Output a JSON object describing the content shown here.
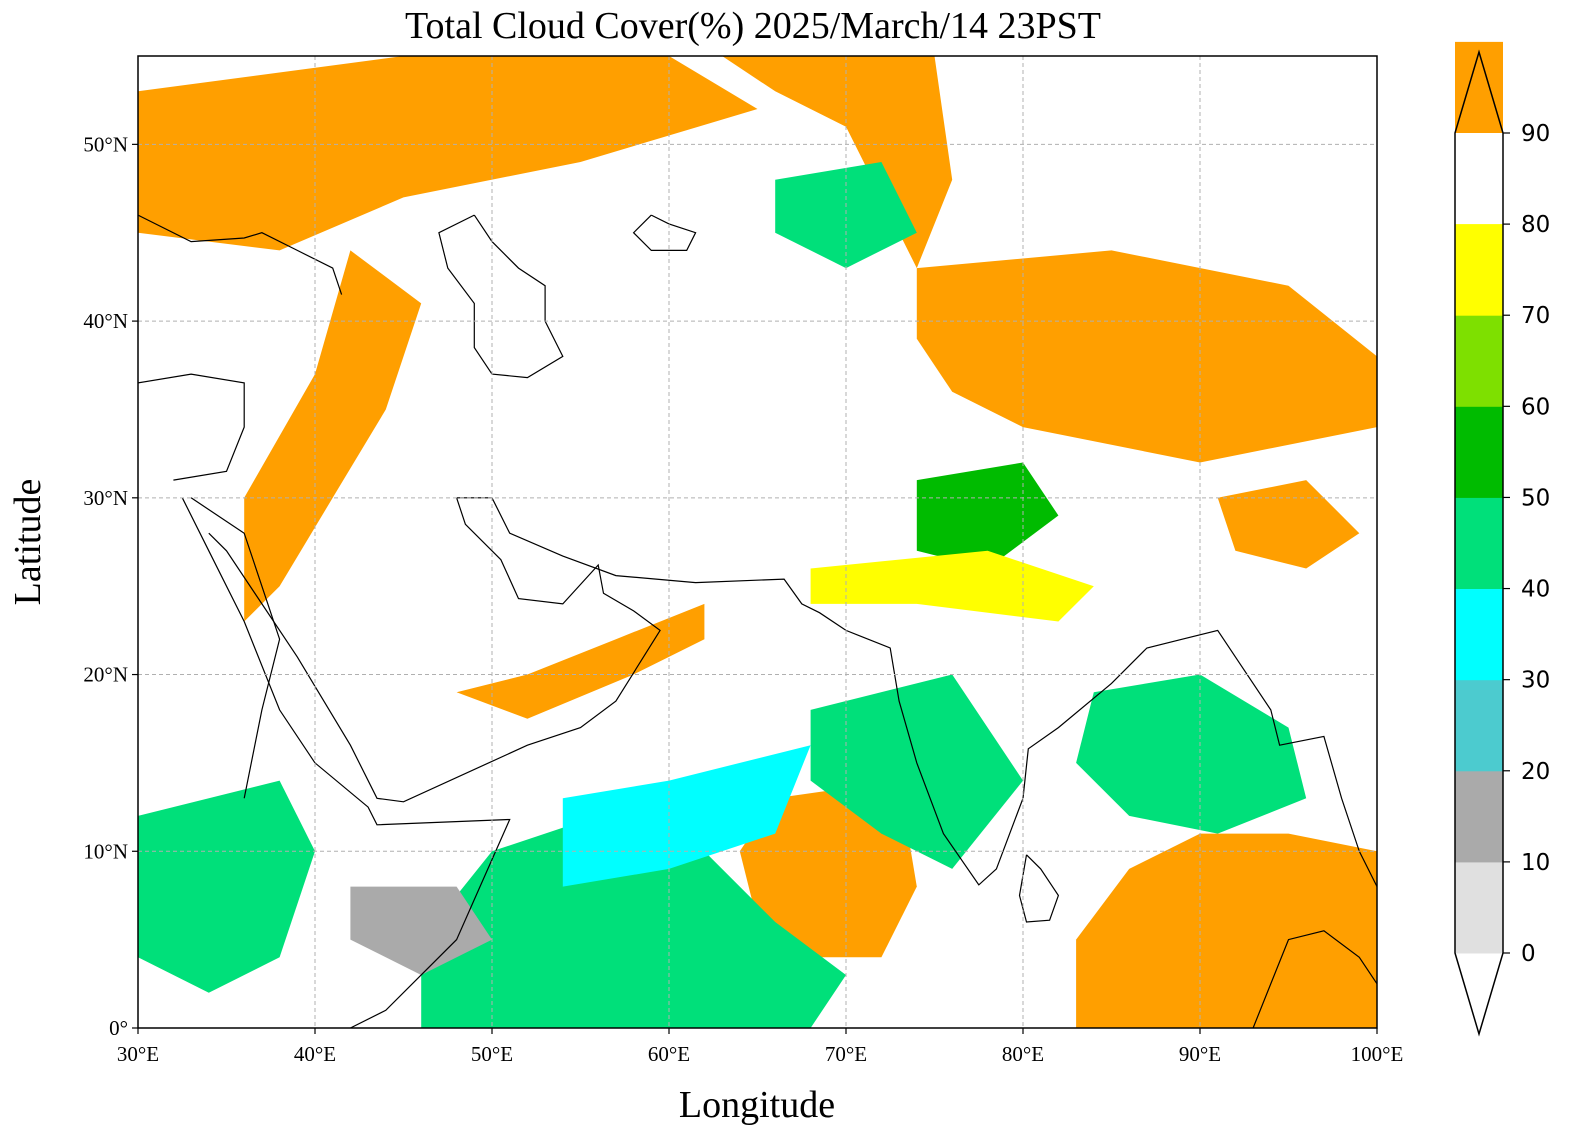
{
  "figure": {
    "title": "Total Cloud Cover(%)  2025/March/14 23PST",
    "xlabel": "Longitude",
    "ylabel": "Latitude"
  },
  "chart_data": {
    "type": "heatmap",
    "variable": "Total Cloud Cover(%)",
    "x_ticks": [
      "30°E",
      "40°E",
      "50°E",
      "60°E",
      "70°E",
      "80°E",
      "90°E",
      "100°E"
    ],
    "x_tick_values": [
      30,
      40,
      50,
      60,
      70,
      80,
      90,
      100
    ],
    "y_ticks": [
      "0°",
      "10°N",
      "20°N",
      "30°N",
      "40°N",
      "50°N"
    ],
    "y_tick_values": [
      0,
      10,
      20,
      30,
      40,
      50
    ],
    "xlim": [
      30,
      100
    ],
    "ylim": [
      0,
      55
    ],
    "grid": true,
    "colorbar": {
      "ticks": [
        "0",
        "10",
        "20",
        "30",
        "40",
        "50",
        "60",
        "70",
        "80",
        "90"
      ],
      "levels": [
        0,
        10,
        20,
        30,
        40,
        50,
        60,
        70,
        80,
        90
      ],
      "colors": [
        "#ffffff",
        "#e0e0e0",
        "#aaaaaa",
        "#4ccbcf",
        "#00ffff",
        "#00e07a",
        "#00bb00",
        "#7ee000",
        "#ffff00",
        "#ff9f00"
      ],
      "extend": "both",
      "placement": "right"
    },
    "regions": [
      {
        "value": 95,
        "polygon": [
          [
            30,
            53
          ],
          [
            45,
            55
          ],
          [
            60,
            55
          ],
          [
            65,
            52
          ],
          [
            55,
            49
          ],
          [
            45,
            47
          ],
          [
            38,
            44
          ],
          [
            30,
            45
          ]
        ]
      },
      {
        "value": 95,
        "polygon": [
          [
            42,
            44
          ],
          [
            46,
            41
          ],
          [
            44,
            35
          ],
          [
            41,
            30
          ],
          [
            38,
            25
          ],
          [
            36,
            23
          ],
          [
            36,
            30
          ],
          [
            40,
            37
          ]
        ]
      },
      {
        "value": 95,
        "polygon": [
          [
            63,
            55
          ],
          [
            75,
            55
          ],
          [
            76,
            48
          ],
          [
            74,
            43
          ],
          [
            72,
            47
          ],
          [
            70,
            51
          ],
          [
            66,
            53
          ]
        ]
      },
      {
        "value": 95,
        "polygon": [
          [
            74,
            43
          ],
          [
            85,
            44
          ],
          [
            95,
            42
          ],
          [
            100,
            38
          ],
          [
            100,
            34
          ],
          [
            90,
            32
          ],
          [
            80,
            34
          ],
          [
            76,
            36
          ],
          [
            74,
            39
          ]
        ]
      },
      {
        "value": 95,
        "polygon": [
          [
            48,
            19
          ],
          [
            52,
            20
          ],
          [
            57,
            22
          ],
          [
            62,
            24
          ],
          [
            62,
            22
          ],
          [
            58,
            20
          ],
          [
            52,
            17.5
          ]
        ]
      },
      {
        "value": 95,
        "polygon": [
          [
            66,
            13
          ],
          [
            73,
            14
          ],
          [
            74,
            8
          ],
          [
            72,
            4
          ],
          [
            68,
            4
          ],
          [
            65,
            6
          ],
          [
            64,
            10
          ]
        ]
      },
      {
        "value": 95,
        "polygon": [
          [
            83,
            0
          ],
          [
            100,
            0
          ],
          [
            100,
            10
          ],
          [
            95,
            11
          ],
          [
            90,
            11
          ],
          [
            86,
            9
          ],
          [
            83,
            5
          ]
        ]
      },
      {
        "value": 95,
        "polygon": [
          [
            91,
            30
          ],
          [
            96,
            31
          ],
          [
            99,
            28
          ],
          [
            96,
            26
          ],
          [
            92,
            27
          ]
        ]
      },
      {
        "value": 65,
        "polygon": [
          [
            74,
            31
          ],
          [
            80,
            32
          ],
          [
            82,
            29
          ],
          [
            78,
            26
          ],
          [
            74,
            27
          ]
        ]
      },
      {
        "value": 55,
        "polygon": [
          [
            46,
            0
          ],
          [
            60,
            0
          ],
          [
            68,
            0
          ],
          [
            70,
            3
          ],
          [
            66,
            6
          ],
          [
            62,
            10
          ],
          [
            56,
            12
          ],
          [
            50,
            10
          ],
          [
            46,
            5
          ]
        ]
      },
      {
        "value": 55,
        "polygon": [
          [
            68,
            18
          ],
          [
            76,
            20
          ],
          [
            80,
            14
          ],
          [
            76,
            9
          ],
          [
            72,
            11
          ],
          [
            68,
            14
          ]
        ]
      },
      {
        "value": 55,
        "polygon": [
          [
            84,
            19
          ],
          [
            90,
            20
          ],
          [
            95,
            17
          ],
          [
            96,
            13
          ],
          [
            91,
            11
          ],
          [
            86,
            12
          ],
          [
            83,
            15
          ]
        ]
      },
      {
        "value": 45,
        "polygon": [
          [
            54,
            13
          ],
          [
            60,
            14
          ],
          [
            68,
            16
          ],
          [
            66,
            11
          ],
          [
            60,
            9
          ],
          [
            54,
            8
          ]
        ]
      },
      {
        "value": 85,
        "polygon": [
          [
            68,
            26
          ],
          [
            78,
            27
          ],
          [
            84,
            25
          ],
          [
            82,
            23
          ],
          [
            74,
            24
          ],
          [
            68,
            24
          ]
        ]
      },
      {
        "value": 55,
        "polygon": [
          [
            30,
            12
          ],
          [
            38,
            14
          ],
          [
            40,
            10
          ],
          [
            38,
            4
          ],
          [
            34,
            2
          ],
          [
            30,
            4
          ]
        ]
      },
      {
        "value": 55,
        "polygon": [
          [
            66,
            48
          ],
          [
            72,
            49
          ],
          [
            74,
            45
          ],
          [
            70,
            43
          ],
          [
            66,
            45
          ]
        ]
      },
      {
        "value": 25,
        "polygon": [
          [
            42,
            8
          ],
          [
            48,
            8
          ],
          [
            50,
            5
          ],
          [
            46,
            3
          ],
          [
            42,
            5
          ]
        ]
      }
    ]
  }
}
